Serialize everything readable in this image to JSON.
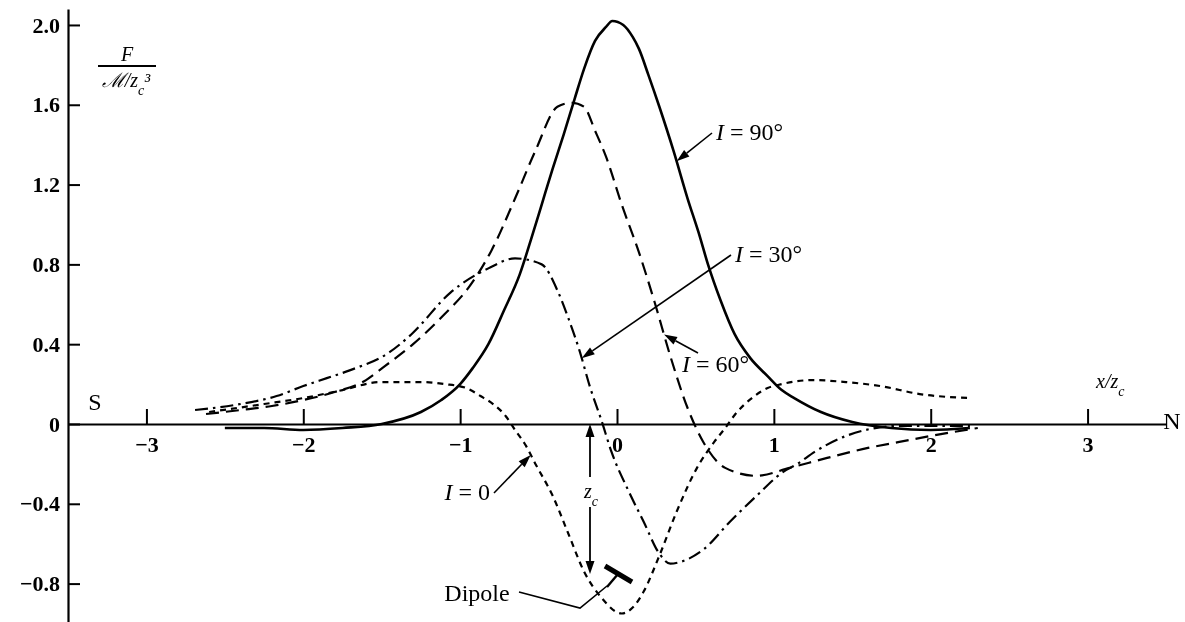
{
  "chart_data": {
    "type": "line",
    "xlabel": "x/z$_{c}$",
    "ylabel": "F\nℳ/z$_{c}$³",
    "annotations": [
      "S",
      "N",
      "Dipole",
      "z$_{c}$"
    ],
    "xlim": [
      -3.5,
      3.5
    ],
    "ylim": [
      -0.99,
      2.08
    ],
    "xticks": [
      {
        "value": -3,
        "label": "−3"
      },
      {
        "value": -2,
        "label": "−2"
      },
      {
        "value": -1,
        "label": "−1"
      },
      0,
      1,
      2,
      3
    ],
    "yticks": [
      {
        "value": -0.8,
        "label": "−0.8"
      },
      {
        "value": -0.4,
        "label": "−0.4"
      },
      0,
      0.4,
      0.8,
      1.2,
      1.6,
      {
        "value": 2,
        "label": "2.0"
      }
    ],
    "series": [
      {
        "name": "I = 90°",
        "color": "#000000",
        "line_style": "solid",
        "x": [
          -2.5,
          -2.25,
          -2.0,
          -1.75,
          -1.5,
          -1.25,
          -1.12,
          -1.0,
          -0.92,
          -0.82,
          -0.72,
          -0.62,
          -0.55,
          -0.48,
          -0.41,
          -0.34,
          -0.27,
          -0.21,
          -0.14,
          -0.07,
          -0.03,
          0.04,
          0.1,
          0.14,
          0.2,
          0.27,
          0.36,
          0.45,
          0.52,
          0.58,
          0.66,
          0.75,
          0.85,
          0.96,
          1.05,
          1.13,
          1.3,
          1.5,
          1.75,
          2.0,
          2.25
        ],
        "values": [
          -0.02,
          -0.02,
          -0.03,
          -0.02,
          0.0,
          0.06,
          0.12,
          0.2,
          0.28,
          0.4,
          0.57,
          0.75,
          0.92,
          1.1,
          1.28,
          1.45,
          1.63,
          1.78,
          1.92,
          1.99,
          2.02,
          2.0,
          1.94,
          1.88,
          1.75,
          1.59,
          1.37,
          1.13,
          0.96,
          0.8,
          0.62,
          0.45,
          0.33,
          0.24,
          0.17,
          0.13,
          0.06,
          0.01,
          -0.02,
          -0.03,
          -0.02
        ]
      },
      {
        "name": "I = 60°",
        "color": "#000000",
        "line_style": "dashed",
        "x": [
          -2.62,
          -2.4,
          -2.2,
          -2.0,
          -1.8,
          -1.6,
          -1.48,
          -1.3,
          -1.1,
          -0.95,
          -0.8,
          -0.65,
          -0.52,
          -0.38,
          -0.29,
          -0.21,
          -0.14,
          -0.07,
          0.03,
          0.14,
          0.24,
          0.34,
          0.45,
          0.55,
          0.69,
          0.89,
          1.1,
          1.34,
          1.6,
          1.8,
          2.0,
          2.3
        ],
        "values": [
          0.05,
          0.07,
          0.09,
          0.12,
          0.16,
          0.22,
          0.29,
          0.4,
          0.55,
          0.68,
          0.87,
          1.13,
          1.37,
          1.59,
          1.61,
          1.59,
          1.47,
          1.34,
          1.1,
          0.86,
          0.61,
          0.34,
          0.08,
          -0.09,
          -0.22,
          -0.26,
          -0.22,
          -0.17,
          -0.12,
          -0.09,
          -0.06,
          -0.02
        ]
      },
      {
        "name": "I = 30°",
        "color": "#000000",
        "line_style": "dashdot",
        "x": [
          -2.69,
          -2.4,
          -2.17,
          -2.0,
          -1.85,
          -1.7,
          -1.45,
          -1.31,
          -1.06,
          -0.82,
          -0.65,
          -0.48,
          -0.38,
          -0.31,
          -0.24,
          -0.17,
          -0.1,
          -0.035,
          0.07,
          0.17,
          0.27,
          0.34,
          0.41,
          0.55,
          0.72,
          0.89,
          1.06,
          1.15,
          1.26,
          1.46,
          1.8,
          2.25
        ],
        "values": [
          0.07,
          0.1,
          0.14,
          0.19,
          0.23,
          0.27,
          0.36,
          0.45,
          0.66,
          0.78,
          0.83,
          0.8,
          0.67,
          0.53,
          0.37,
          0.18,
          0.02,
          -0.14,
          -0.33,
          -0.49,
          -0.65,
          -0.7,
          -0.69,
          -0.63,
          -0.49,
          -0.36,
          -0.24,
          -0.2,
          -0.14,
          -0.06,
          -0.01,
          -0.01
        ]
      },
      {
        "name": "I = 0",
        "color": "#000000",
        "line_style": "dotted",
        "x": [
          -2.6,
          -2.25,
          -2.0,
          -1.75,
          -1.51,
          -1.24,
          -1.1,
          -0.96,
          -0.87,
          -0.79,
          -0.71,
          -0.65,
          -0.58,
          -0.52,
          -0.41,
          -0.31,
          -0.21,
          -0.1,
          0.03,
          0.1,
          0.17,
          0.27,
          0.38,
          0.51,
          0.62,
          0.69,
          0.755,
          0.86,
          0.96,
          1.05,
          1.25,
          1.46,
          1.68,
          1.93,
          2.25
        ],
        "values": [
          0.06,
          0.1,
          0.13,
          0.17,
          0.21,
          0.21,
          0.2,
          0.18,
          0.14,
          0.1,
          0.04,
          -0.03,
          -0.11,
          -0.2,
          -0.36,
          -0.55,
          -0.74,
          -0.87,
          -0.95,
          -0.92,
          -0.84,
          -0.66,
          -0.44,
          -0.22,
          -0.09,
          -0.02,
          0.05,
          0.13,
          0.18,
          0.2,
          0.22,
          0.21,
          0.19,
          0.15,
          0.13
        ]
      }
    ]
  }
}
